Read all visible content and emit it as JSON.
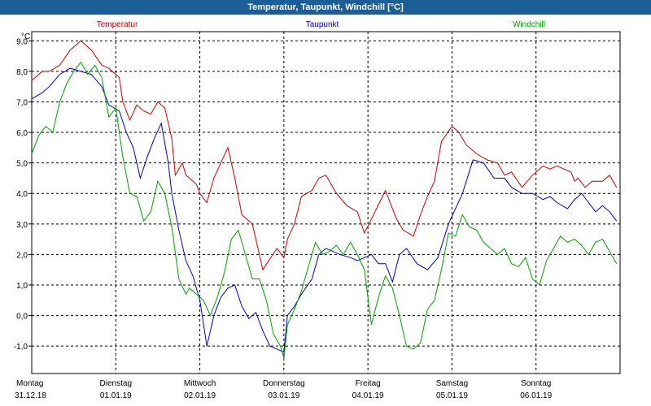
{
  "window": {
    "title": "Temperatur, Taupunkt, Windchill [°C]"
  },
  "chart_data": {
    "type": "line",
    "title": "Temperatur, Taupunkt, Windchill [°C]",
    "ylabel": "°C",
    "ylim": [
      -1.9,
      9.3
    ],
    "xlim": [
      0,
      168
    ],
    "yticks": [
      -1.0,
      0.0,
      1.0,
      2.0,
      3.0,
      4.0,
      5.0,
      6.0,
      7.0,
      8.0,
      9.0
    ],
    "ytick_labels": [
      "-1,0",
      "0,0",
      "1,0",
      "2,0",
      "3,0",
      "4,0",
      "5,0",
      "6,0",
      "7,0",
      "8,0",
      "9,0"
    ],
    "xticks": [
      {
        "x": 0,
        "day": "Montag",
        "date": "31.12.18"
      },
      {
        "x": 24,
        "day": "Dienstag",
        "date": "01.01.19"
      },
      {
        "x": 48,
        "day": "Mittwoch",
        "date": "02.01.19"
      },
      {
        "x": 72,
        "day": "Donnerstag",
        "date": "03.01.19"
      },
      {
        "x": 96,
        "day": "Freitag",
        "date": "04.01.19"
      },
      {
        "x": 120,
        "day": "Samstag",
        "date": "05.01.19"
      },
      {
        "x": 144,
        "day": "Sonntag",
        "date": "06.01.19"
      }
    ],
    "grid": true,
    "series": [
      {
        "name": "Temperatur",
        "color": "#cc0000",
        "x": [
          0,
          3,
          5,
          8,
          11,
          14,
          17,
          20,
          22,
          25,
          26,
          28,
          30,
          32,
          34,
          36,
          38,
          40,
          41,
          43,
          44,
          45,
          47,
          48,
          50,
          52,
          54,
          56,
          58,
          60,
          63,
          66,
          70,
          72,
          73,
          75,
          77,
          80,
          82,
          84,
          85,
          87,
          90,
          93,
          95,
          98,
          101,
          104,
          106,
          109,
          111,
          113,
          115,
          117,
          120,
          122,
          124,
          127,
          130,
          133,
          135,
          137,
          140,
          143,
          146,
          148,
          150,
          152,
          154,
          155,
          156,
          158,
          160,
          163,
          165,
          167
        ],
        "values": [
          7.7,
          8.0,
          8.0,
          8.2,
          8.7,
          9.0,
          8.7,
          8.2,
          8.1,
          7.8,
          7.0,
          6.4,
          6.9,
          6.7,
          6.6,
          7.0,
          6.8,
          5.8,
          4.6,
          5.0,
          4.6,
          4.5,
          4.3,
          4.0,
          3.7,
          4.5,
          5.0,
          5.5,
          4.5,
          3.3,
          3.0,
          1.5,
          2.2,
          1.9,
          2.5,
          3.0,
          3.9,
          4.1,
          4.5,
          4.6,
          4.4,
          4.0,
          3.6,
          3.4,
          2.7,
          3.4,
          4.1,
          3.2,
          2.8,
          2.6,
          3.3,
          3.9,
          4.4,
          5.7,
          6.2,
          6.0,
          5.6,
          5.3,
          5.1,
          5.0,
          4.6,
          4.7,
          4.2,
          4.6,
          4.9,
          4.8,
          4.9,
          4.8,
          4.7,
          4.4,
          4.5,
          4.2,
          4.4,
          4.4,
          4.6,
          4.2
        ]
      },
      {
        "name": "Taupunkt",
        "color": "#0000cc",
        "x": [
          0,
          3,
          5,
          8,
          11,
          14,
          17,
          20,
          22,
          25,
          27,
          29,
          31,
          33,
          35,
          37,
          39,
          40,
          42,
          44,
          46,
          48,
          50,
          52,
          54,
          56,
          58,
          60,
          62,
          64,
          66,
          68,
          70,
          72,
          73,
          75,
          77,
          80,
          82,
          84,
          86,
          88,
          91,
          93,
          95,
          97,
          99,
          101,
          103,
          105,
          107,
          110,
          113,
          116,
          119,
          121,
          123,
          126,
          129,
          132,
          135,
          137,
          140,
          143,
          146,
          148,
          150,
          153,
          155,
          157,
          159,
          161,
          163,
          165,
          167
        ],
        "values": [
          7.1,
          7.3,
          7.5,
          7.9,
          8.1,
          8.0,
          7.9,
          7.5,
          6.9,
          6.7,
          6.0,
          5.5,
          4.5,
          5.2,
          5.8,
          6.3,
          5.0,
          4.0,
          2.8,
          1.8,
          1.3,
          0.5,
          -1.0,
          0.0,
          0.6,
          0.9,
          1.0,
          0.3,
          -0.1,
          0.1,
          -0.5,
          -1.0,
          -1.1,
          -1.2,
          0.0,
          0.3,
          0.7,
          1.2,
          2.0,
          2.2,
          2.1,
          2.0,
          1.9,
          1.8,
          1.9,
          2.0,
          1.7,
          1.7,
          1.1,
          2.0,
          2.2,
          1.7,
          1.5,
          1.9,
          3.0,
          3.5,
          4.0,
          5.1,
          5.0,
          4.5,
          4.5,
          4.2,
          4.0,
          4.0,
          3.8,
          3.9,
          3.7,
          3.5,
          3.8,
          4.0,
          3.7,
          3.4,
          3.6,
          3.4,
          3.1
        ]
      },
      {
        "name": "Windchill",
        "color": "#00a000",
        "x": [
          0,
          2,
          4,
          6,
          8,
          10,
          12,
          14,
          16,
          18,
          20,
          22,
          24,
          26,
          28,
          30,
          32,
          34,
          36,
          38,
          40,
          42,
          44,
          45,
          47,
          49,
          51,
          53,
          55,
          57,
          59,
          61,
          63,
          65,
          67,
          69,
          71,
          72,
          73,
          75,
          77,
          79,
          81,
          83,
          85,
          87,
          89,
          91,
          93,
          95,
          97,
          99,
          101,
          103,
          105,
          107,
          109,
          111,
          113,
          115,
          117,
          119,
          121,
          123,
          125,
          127,
          129,
          131,
          133,
          135,
          137,
          139,
          141,
          143,
          145,
          147,
          149,
          151,
          153,
          155,
          157,
          159,
          161,
          163,
          165,
          167
        ],
        "values": [
          5.3,
          5.9,
          6.2,
          6.0,
          7.0,
          7.6,
          8.0,
          8.3,
          7.9,
          8.2,
          7.8,
          6.5,
          6.8,
          5.2,
          4.0,
          3.9,
          3.1,
          3.4,
          4.4,
          4.0,
          2.9,
          1.2,
          0.7,
          0.9,
          0.7,
          0.5,
          0.0,
          0.6,
          1.4,
          2.5,
          2.8,
          2.0,
          1.2,
          1.2,
          0.5,
          -0.6,
          -1.0,
          -1.4,
          -0.3,
          0.2,
          0.8,
          1.6,
          2.4,
          2.0,
          2.1,
          2.3,
          2.0,
          2.4,
          2.0,
          1.5,
          -0.3,
          0.6,
          1.3,
          0.9,
          0.0,
          -1.0,
          -1.1,
          -0.9,
          0.2,
          0.5,
          1.5,
          2.7,
          2.6,
          3.3,
          2.9,
          2.8,
          2.4,
          2.2,
          2.0,
          2.2,
          1.7,
          1.6,
          1.9,
          1.2,
          1.0,
          1.8,
          2.2,
          2.6,
          2.4,
          2.5,
          2.3,
          2.0,
          2.4,
          2.5,
          2.1,
          1.7
        ]
      }
    ]
  }
}
